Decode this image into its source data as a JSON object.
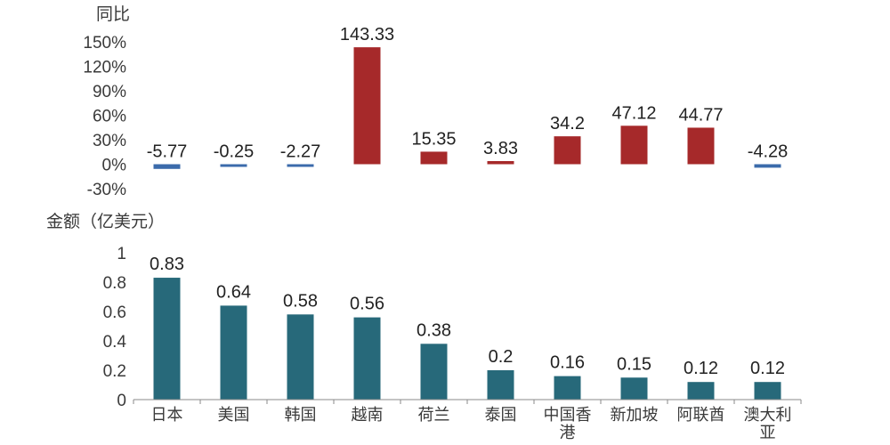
{
  "chart_data": [
    {
      "type": "bar",
      "ylabel": "同比",
      "categories": [
        "日本",
        "美国",
        "韩国",
        "越南",
        "荷兰",
        "泰国",
        "中国香港",
        "新加坡",
        "阿联酋",
        "澳大利亚"
      ],
      "values": [
        -5.77,
        -0.25,
        -2.27,
        143.33,
        15.35,
        3.83,
        34.2,
        47.12,
        44.77,
        -4.28
      ],
      "ylim": [
        -30,
        150
      ],
      "yticks": [
        "-30%",
        "0%",
        "30%",
        "60%",
        "90%",
        "120%",
        "150%"
      ],
      "grid": false,
      "colors": {
        "positive": "#a6292a",
        "negative": "#3b6bab"
      }
    },
    {
      "type": "bar",
      "ylabel": "金额（亿美元）",
      "categories": [
        "日本",
        "美国",
        "韩国",
        "越南",
        "荷兰",
        "泰国",
        "中国香港",
        "新加坡",
        "阿联酋",
        "澳大利亚"
      ],
      "values": [
        0.83,
        0.64,
        0.58,
        0.56,
        0.38,
        0.2,
        0.16,
        0.15,
        0.12,
        0.12
      ],
      "ylim": [
        0,
        1
      ],
      "yticks": [
        "0",
        "0.2",
        "0.4",
        "0.6",
        "0.8",
        "1"
      ],
      "grid": false,
      "colors": {
        "bar": "#27697a"
      }
    }
  ]
}
